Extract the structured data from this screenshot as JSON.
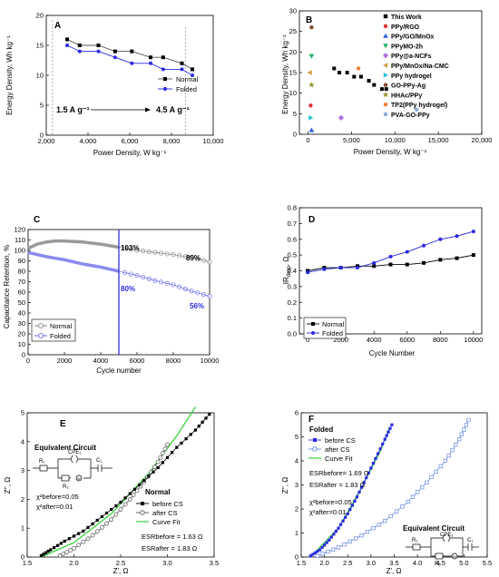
{
  "chart_data": [
    {
      "panel": "A",
      "type": "line",
      "xlabel": "Power Density, W kg⁻¹",
      "ylabel": "Energy Density, Wh kg⁻¹",
      "xlim": [
        2000,
        10000
      ],
      "ylim": [
        0,
        20
      ],
      "xticks": [
        2000,
        4000,
        6000,
        8000,
        10000
      ],
      "xticklabels": [
        "2,000",
        "4,000",
        "6,000",
        "8,000",
        "10,000"
      ],
      "yticks": [
        0,
        5,
        10,
        15,
        20
      ],
      "series": [
        {
          "name": "Normal",
          "color": "#555555",
          "marker": "square",
          "x": [
            3000,
            3600,
            4500,
            5300,
            6100,
            7000,
            7600,
            8500,
            9000
          ],
          "y": [
            16,
            15,
            15,
            14,
            14,
            13,
            13,
            12,
            11
          ]
        },
        {
          "name": "Folded",
          "color": "#2a2ae0",
          "marker": "circle",
          "x": [
            3000,
            3600,
            4500,
            5300,
            6100,
            7000,
            7600,
            8500,
            9000
          ],
          "y": [
            15,
            14,
            14,
            13,
            12,
            12,
            11,
            11,
            10
          ]
        }
      ],
      "annotations": [
        "1.5 A g⁻¹",
        "4.5 A g⁻¹"
      ],
      "legend": "right"
    },
    {
      "panel": "B",
      "type": "scatter",
      "xlabel": "Power Density, W kg⁻¹",
      "ylabel": "Energy Density, Wh kg⁻¹",
      "xlim": [
        -1000,
        20000
      ],
      "ylim": [
        0,
        30
      ],
      "xticks": [
        0,
        5000,
        10000,
        15000,
        20000
      ],
      "xticklabels": [
        "0",
        "5,000",
        "10,000",
        "15,000",
        "20,000"
      ],
      "yticks": [
        0,
        5,
        10,
        15,
        20,
        25,
        30
      ],
      "this_work": {
        "x": [
          3000,
          3600,
          4500,
          5300,
          6100,
          7000,
          7600,
          8500,
          9000
        ],
        "y": [
          16,
          15,
          15,
          14,
          14,
          13,
          12,
          11,
          11
        ]
      },
      "series": [
        {
          "name": "This Work",
          "color": "#000000",
          "marker": "square",
          "x": [],
          "y": []
        },
        {
          "name": "PPy/RGO",
          "color": "#e03030",
          "marker": "circle",
          "x": [
            300
          ],
          "y": [
            7
          ]
        },
        {
          "name": "PPy/GO/MnOx",
          "color": "#2f5fd8",
          "marker": "triangle-up",
          "x": [
            400
          ],
          "y": [
            1
          ]
        },
        {
          "name": "PPyMO-2h",
          "color": "#20b060",
          "marker": "triangle-down",
          "x": [
            400
          ],
          "y": [
            19
          ]
        },
        {
          "name": "PPy@a-NCFs",
          "color": "#b070e0",
          "marker": "diamond",
          "x": [
            3800
          ],
          "y": [
            4
          ]
        },
        {
          "name": "PPy/MnOx/Na-CMC",
          "color": "#c8a040",
          "marker": "triangle-left",
          "x": [
            200
          ],
          "y": [
            15
          ]
        },
        {
          "name": "PPy hydrogel",
          "color": "#20c0d8",
          "marker": "triangle-right",
          "x": [
            300
          ],
          "y": [
            4
          ]
        },
        {
          "name": "GO-PPy-Ag",
          "color": "#8a4a30",
          "marker": "circle",
          "x": [
            400
          ],
          "y": [
            26
          ]
        },
        {
          "name": "HHAc/PPy",
          "color": "#8a8a20",
          "marker": "star",
          "x": [
            400
          ],
          "y": [
            12
          ]
        },
        {
          "name": "TP2(PPy hydrogel)",
          "color": "#f08030",
          "marker": "circle",
          "x": [
            5800
          ],
          "y": [
            16
          ]
        },
        {
          "name": "PVA-GO-PPy",
          "color": "#88aadd",
          "marker": "circle",
          "x": [
            12500
          ],
          "y": [
            6
          ]
        }
      ],
      "legend": "top-right"
    },
    {
      "panel": "C",
      "type": "line",
      "xlabel": "Cycle number",
      "ylabel": "Capacitance Retention, %",
      "xlim": [
        0,
        10000
      ],
      "ylim": [
        0,
        120
      ],
      "xticks": [
        0,
        2000,
        4000,
        6000,
        8000,
        10000
      ],
      "yticks": [
        0,
        10,
        20,
        30,
        40,
        50,
        60,
        70,
        80,
        90,
        100,
        110,
        120
      ],
      "series": [
        {
          "name": "Normal",
          "color": "#777777",
          "x": [
            0,
            500,
            1000,
            1500,
            2000,
            3000,
            4000,
            5000,
            6000,
            7000,
            8000,
            9000,
            10000
          ],
          "y": [
            102,
            106,
            108,
            109,
            109,
            108,
            106,
            103,
            100,
            98,
            96,
            93,
            89
          ]
        },
        {
          "name": "Folded",
          "color": "#5a5ae8",
          "x": [
            0,
            500,
            1000,
            2000,
            3000,
            4000,
            5000,
            6000,
            7000,
            8000,
            9000,
            10000
          ],
          "y": [
            98,
            96,
            94,
            91,
            87,
            84,
            80,
            76,
            71,
            67,
            61,
            56
          ]
        }
      ],
      "vline_x": 5000,
      "annotations": [
        "103%",
        "89%",
        "80%",
        "56%"
      ],
      "legend": "bottom-left"
    },
    {
      "panel": "D",
      "type": "line",
      "xlabel": "Cycle Number",
      "ylabel": "IR_drop, Ω",
      "xlim": [
        -500,
        10500
      ],
      "ylim": [
        0,
        0.8
      ],
      "xticks": [
        0,
        2000,
        4000,
        6000,
        8000,
        10000
      ],
      "yticks": [
        0,
        0.1,
        0.2,
        0.3,
        0.4,
        0.5,
        0.6,
        0.7,
        0.8
      ],
      "yticklabels": [
        "0.0",
        "0.1",
        "0.2",
        "0.3",
        "0.4",
        "0.5",
        "0.6",
        "0.7",
        "0.8"
      ],
      "series": [
        {
          "name": "Normal",
          "color": "#000000",
          "marker": "square",
          "x": [
            0,
            1000,
            2000,
            3000,
            4000,
            5000,
            6000,
            7000,
            8000,
            9000,
            10000
          ],
          "y": [
            0.4,
            0.42,
            0.42,
            0.43,
            0.43,
            0.44,
            0.44,
            0.45,
            0.47,
            0.48,
            0.5
          ]
        },
        {
          "name": "Folded",
          "color": "#2a2ae0",
          "marker": "circle",
          "x": [
            0,
            1000,
            2000,
            3000,
            4000,
            5000,
            6000,
            7000,
            8000,
            9000,
            10000
          ],
          "y": [
            0.39,
            0.41,
            0.42,
            0.42,
            0.45,
            0.49,
            0.52,
            0.56,
            0.6,
            0.62,
            0.65
          ]
        }
      ],
      "legend": "bottom-left"
    },
    {
      "panel": "E",
      "type": "line",
      "xlabel": "Z', Ω",
      "ylabel": "Z'', Ω",
      "xlim": [
        1.5,
        3.5
      ],
      "ylim": [
        0,
        5
      ],
      "xticks": [
        1.5,
        2.0,
        2.5,
        3.0,
        3.5
      ],
      "xticklabels": [
        "1.5",
        "2.0",
        "2.5",
        "3.0",
        "3.5"
      ],
      "yticks": [
        0,
        1,
        2,
        3,
        4,
        5
      ],
      "series": [
        {
          "name": "before CS",
          "color": "#000000",
          "marker": "filled-square",
          "x": [
            1.65,
            1.75,
            1.9,
            2.1,
            2.3,
            2.5,
            2.7,
            2.9,
            3.1,
            3.3,
            3.45
          ],
          "y": [
            0.05,
            0.25,
            0.55,
            0.9,
            1.4,
            1.9,
            2.5,
            3.1,
            3.8,
            4.4,
            4.95
          ]
        },
        {
          "name": "after CS",
          "color": "#555555",
          "marker": "open-circle",
          "x": [
            1.85,
            2.0,
            2.2,
            2.4,
            2.6,
            2.75,
            2.9,
            3.0
          ],
          "y": [
            0.05,
            0.3,
            0.75,
            1.3,
            2.0,
            2.6,
            3.3,
            3.9
          ]
        },
        {
          "name": "Curve Fit",
          "color": "#3ad23a",
          "x": [
            1.65,
            2.0,
            2.4,
            2.8,
            3.1,
            3.3
          ],
          "y": [
            0.0,
            0.5,
            1.5,
            2.9,
            4.2,
            5.2
          ]
        }
      ],
      "texts": [
        "Equivalent Circuit",
        "CPE₁",
        "R₁",
        "C₁",
        "R₂",
        "W",
        "χ²before=0.05",
        "χ²after=0.01",
        "Normal",
        "ESRbefore = 1.63 Ω",
        "ESRafter = 1.83 Ω"
      ]
    },
    {
      "panel": "F",
      "type": "line",
      "xlabel": "Z', Ω",
      "ylabel": "Z'', Ω",
      "xlim": [
        1.5,
        5.5
      ],
      "ylim": [
        0,
        6
      ],
      "xticks": [
        1.5,
        2.0,
        2.5,
        3.0,
        3.5,
        4.0,
        4.5,
        5.0,
        5.5
      ],
      "xticklabels": [
        "1.5",
        "2.0",
        "2.5",
        "3.0",
        "3.5",
        "4.0",
        "4.5",
        "5.0",
        "5.5"
      ],
      "yticks": [
        0,
        1,
        2,
        3,
        4,
        5,
        6
      ],
      "series": [
        {
          "name": "before CS",
          "color": "#2a2ae0",
          "marker": "filled-square",
          "x": [
            1.7,
            1.9,
            2.1,
            2.3,
            2.5,
            2.7,
            2.9,
            3.1,
            3.3,
            3.45
          ],
          "y": [
            0.05,
            0.3,
            0.7,
            1.2,
            1.8,
            2.5,
            3.3,
            4.1,
            4.9,
            5.5
          ]
        },
        {
          "name": "after CS",
          "color": "#6a8ae0",
          "marker": "open-square",
          "x": [
            1.85,
            2.3,
            2.8,
            3.3,
            3.8,
            4.2,
            4.6,
            4.9,
            5.1
          ],
          "y": [
            0.05,
            0.4,
            0.9,
            1.5,
            2.3,
            3.1,
            4.0,
            4.9,
            5.7
          ]
        },
        {
          "name": "Curve Fit",
          "color": "#3ad23a",
          "x": [
            1.7,
            2.3,
            2.8,
            3.2,
            3.4
          ],
          "y": [
            0.0,
            1.2,
            2.9,
            4.4,
            5.4
          ]
        }
      ],
      "texts": [
        "Folded",
        "ESRbefore= 1.69 Ω",
        "ESRafter = 1.83 Ω",
        "χ²before=0.05",
        "χ²after=0.01",
        "Equivalent Circuit",
        "CPE₁",
        "R₁",
        "C₁",
        "R₂",
        "W"
      ]
    }
  ]
}
